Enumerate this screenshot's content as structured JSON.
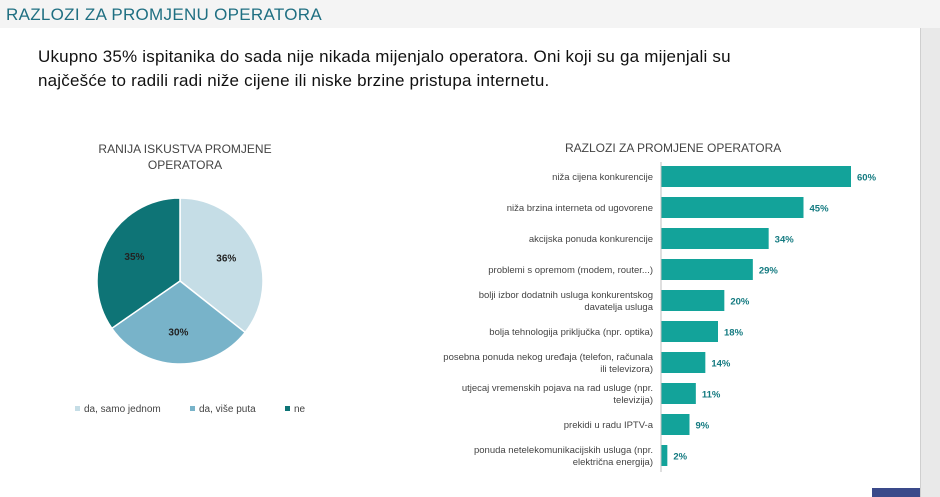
{
  "header": {
    "title": "RAZLOZI ZA PROMJENU OPERATORA"
  },
  "intro": {
    "line1": "Ukupno 35% ispitanika do sada nije nikada mijenjalo operatora. Oni koji su ga mijenjali su",
    "line2": "najčešće to radili radi niže cijene ili niske brzine pristupa internetu."
  },
  "colors": {
    "teal_dark": "#0e7476",
    "teal_bar": "#13a39a",
    "blue_mid": "#78b3c9",
    "blue_light": "#c5dde6"
  },
  "chart_data": [
    {
      "type": "pie",
      "title_line1": "RANIJA ISKUSTVA PROMJENE",
      "title_line2": "OPERATORA",
      "slices": [
        {
          "name": "da, samo jednom",
          "value": 36,
          "label": "36%",
          "color": "#c5dde6"
        },
        {
          "name": "da, više puta",
          "value": 30,
          "label": "30%",
          "color": "#78b3c9"
        },
        {
          "name": "ne",
          "value": 35,
          "label": "35%",
          "color": "#0e7476"
        }
      ],
      "legend_position": "bottom"
    },
    {
      "type": "bar",
      "orientation": "horizontal",
      "title": "RAZLOZI ZA PROMJENE OPERATORA",
      "xlim": [
        0,
        60
      ],
      "categories": [
        [
          "niža cijena konkurencije"
        ],
        [
          "niža brzina interneta od ugovorene"
        ],
        [
          "akcijska ponuda konkurencije"
        ],
        [
          "problemi s opremom (modem, router...)"
        ],
        [
          "bolji izbor dodatnih usluga konkurentskog",
          "davatelja usluga"
        ],
        [
          "bolja tehnologija priključka (npr. optika)"
        ],
        [
          "posebna ponuda nekog uređaja (telefon, računala",
          "ili televizora)"
        ],
        [
          "utjecaj vremenskih pojava na rad usluge (npr.",
          "televizija)"
        ],
        [
          "prekidi u radu IPTV-a"
        ],
        [
          "ponuda netelekomunikacijskih usluga (npr.",
          "električna energija)"
        ]
      ],
      "values": [
        60,
        45,
        34,
        29,
        20,
        18,
        14,
        11,
        9,
        2
      ],
      "value_labels": [
        "60%",
        "45%",
        "34%",
        "29%",
        "20%",
        "18%",
        "14%",
        "11%",
        "9%",
        "2%"
      ],
      "color": "#13a39a"
    }
  ]
}
